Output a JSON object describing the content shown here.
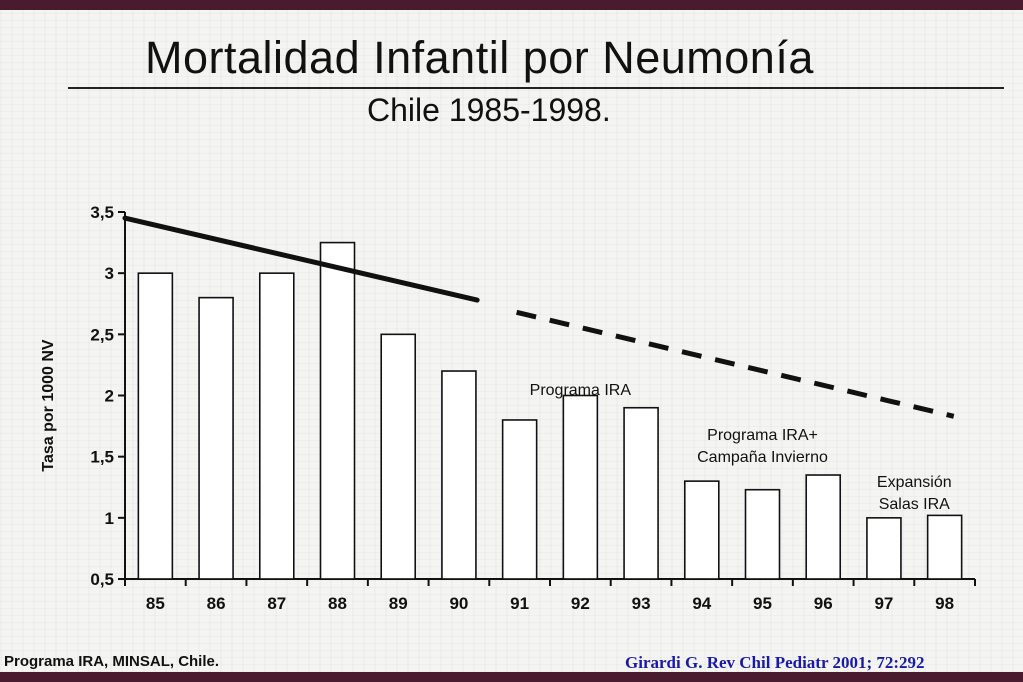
{
  "slide": {
    "title": "Mortalidad Infantil por Neumonía",
    "subtitle": "Chile 1985-1998.",
    "source_left": "Programa IRA, MINSAL, Chile.",
    "source_right": "Girardi G. Rev Chil Pediatr 2001; 72:292"
  },
  "colors": {
    "background": "#f4f4f2",
    "frame": "#4a1a2e",
    "bars": "#ffffff",
    "ink": "#111111",
    "citation": "#1a1aa8"
  },
  "chart_data": {
    "type": "bar",
    "ylabel": "Tasa por 1000 NV",
    "xlabel": "",
    "ylim": [
      0.5,
      3.5
    ],
    "yticks": [
      "3,5",
      "3",
      "2,5",
      "2",
      "1,5",
      "1",
      "0,5"
    ],
    "ytick_values": [
      3.5,
      3,
      2.5,
      2,
      1.5,
      1,
      0.5
    ],
    "categories": [
      "85",
      "86",
      "87",
      "88",
      "89",
      "90",
      "91",
      "92",
      "93",
      "94",
      "95",
      "96",
      "97",
      "98"
    ],
    "values": [
      3.0,
      2.8,
      3.0,
      3.25,
      2.5,
      2.2,
      1.8,
      2.0,
      1.9,
      1.3,
      1.23,
      1.35,
      1.0,
      1.02
    ],
    "trend": {
      "solid": {
        "x": [
          "85",
          "90"
        ],
        "y": [
          3.45,
          2.78
        ]
      },
      "dashed": {
        "x": [
          "91",
          "98"
        ],
        "y": [
          2.68,
          1.83
        ]
      }
    },
    "annotations": [
      {
        "lines": [
          "Programa IRA"
        ],
        "category": "92"
      },
      {
        "lines": [
          "Programa IRA+",
          "Campaña Invierno"
        ],
        "category": "95"
      },
      {
        "lines": [
          "Expansión",
          "Salas IRA"
        ],
        "category": "97.5"
      }
    ],
    "grid": false
  }
}
